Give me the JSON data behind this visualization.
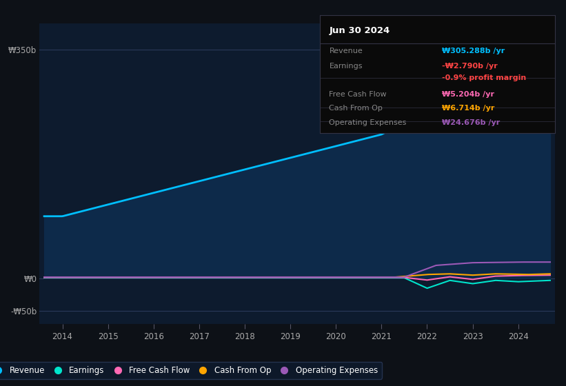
{
  "background_color": "#0d1117",
  "plot_bg_color": "#0d1b2e",
  "fill_color": "#0d2a4a",
  "ylim": [
    -70,
    390
  ],
  "xticks": [
    2014,
    2015,
    2016,
    2017,
    2018,
    2019,
    2020,
    2021,
    2022,
    2023,
    2024
  ],
  "revenue_color": "#00bfff",
  "earnings_color": "#00e5cc",
  "fcf_color": "#ff69b4",
  "cashop_color": "#ffa500",
  "opex_color": "#9b59b6",
  "legend_items": [
    "Revenue",
    "Earnings",
    "Free Cash Flow",
    "Cash From Op",
    "Operating Expenses"
  ],
  "legend_colors": [
    "#00bfff",
    "#00e5cc",
    "#ff69b4",
    "#ffa500",
    "#9b59b6"
  ],
  "info_box_title": "Jun 30 2024",
  "info_rows": [
    {
      "label": "Revenue",
      "value": "₩305.288b /yr",
      "value_color": "#00bfff",
      "label_color": "#888888"
    },
    {
      "label": "Earnings",
      "value": "-₩2.790b /yr",
      "value_color": "#ff4444",
      "label_color": "#888888"
    },
    {
      "label": "",
      "value": "-0.9% profit margin",
      "value_color": "#ff4444",
      "label_color": "#888888"
    },
    {
      "label": "Free Cash Flow",
      "value": "₩5.204b /yr",
      "value_color": "#ff69b4",
      "label_color": "#888888"
    },
    {
      "label": "Cash From Op",
      "value": "₩6.714b /yr",
      "value_color": "#ffa500",
      "label_color": "#888888"
    },
    {
      "label": "Operating Expenses",
      "value": "₩24.676b /yr",
      "value_color": "#9b59b6",
      "label_color": "#888888"
    }
  ],
  "ytick_positions": [
    -50,
    0,
    350
  ],
  "ytick_labels": [
    "-₩50b",
    "₩0",
    "₩350b"
  ]
}
